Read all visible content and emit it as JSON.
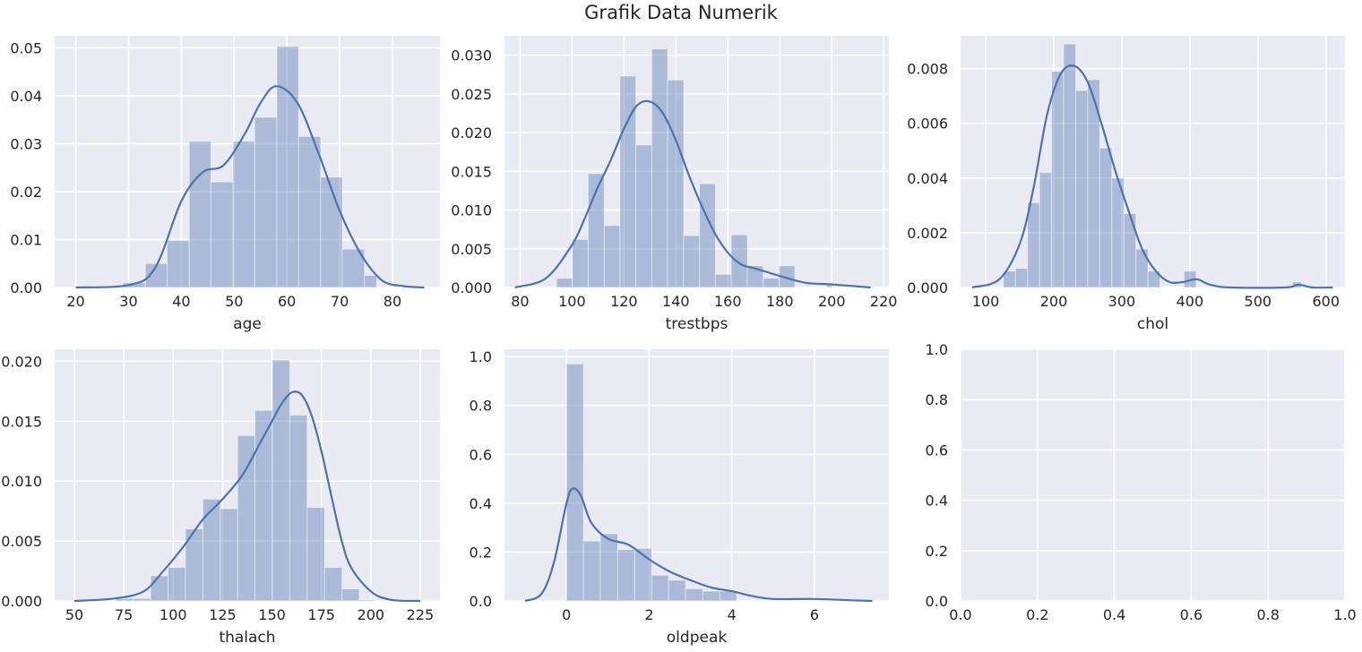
{
  "figure": {
    "title": "Grafik Data Numerik"
  },
  "colors": {
    "bar": "#4c72b0",
    "kde": "#4c72b0",
    "axes_bg": "#eaeaf2",
    "grid": "#ffffff",
    "text": "#262626"
  },
  "chart_data": [
    {
      "type": "bar",
      "xlabel": "age",
      "xlim": [
        16,
        89
      ],
      "ylim": [
        0,
        0.0525
      ],
      "xticks": [
        20,
        30,
        40,
        50,
        60,
        70,
        80
      ],
      "yticks": [
        0.0,
        0.01,
        0.02,
        0.03,
        0.04,
        0.05
      ],
      "ytick_labels": [
        "0.00",
        "0.01",
        "0.02",
        "0.03",
        "0.04",
        "0.05"
      ],
      "bin_edges": [
        29,
        33.2,
        37.3,
        41.5,
        45.6,
        49.8,
        53.9,
        58.1,
        62.2,
        66.4,
        70.5,
        74.7,
        77
      ],
      "values": [
        0.001,
        0.005,
        0.0098,
        0.0305,
        0.022,
        0.0305,
        0.0355,
        0.0503,
        0.0315,
        0.023,
        0.008,
        0.0025
      ],
      "kde": {
        "x": [
          20,
          30,
          35,
          40,
          44,
          48,
          52,
          55,
          58,
          62,
          66,
          70,
          74,
          78,
          82,
          86
        ],
        "y": [
          0.0,
          0.0005,
          0.004,
          0.018,
          0.024,
          0.0255,
          0.032,
          0.0385,
          0.042,
          0.0385,
          0.028,
          0.016,
          0.007,
          0.0015,
          0.0003,
          0.0
        ]
      }
    },
    {
      "type": "bar",
      "xlabel": "trestbps",
      "xlim": [
        74,
        222
      ],
      "ylim": [
        0,
        0.0325
      ],
      "xticks": [
        80,
        100,
        120,
        140,
        160,
        180,
        200,
        220
      ],
      "yticks": [
        0.0,
        0.005,
        0.01,
        0.015,
        0.02,
        0.025,
        0.03
      ],
      "ytick_labels": [
        "0.000",
        "0.005",
        "0.010",
        "0.015",
        "0.020",
        "0.025",
        "0.030"
      ],
      "bin_edges": [
        94,
        100.1,
        106.2,
        112.4,
        118.5,
        124.6,
        130.7,
        136.8,
        143,
        149.1,
        155.2,
        161.3,
        167.5,
        173.6,
        179.7,
        185.8,
        191.9,
        198.1,
        200
      ],
      "values": [
        0.0012,
        0.0062,
        0.0147,
        0.008,
        0.0273,
        0.0184,
        0.0308,
        0.0268,
        0.0067,
        0.0134,
        0.0017,
        0.0068,
        0.0028,
        0.0012,
        0.0028,
        0.0,
        0.0,
        0.0005
      ],
      "kde": {
        "x": [
          78,
          90,
          100,
          105,
          110,
          115,
          120,
          125,
          130,
          135,
          140,
          145,
          150,
          155,
          160,
          165,
          170,
          175,
          180,
          190,
          200,
          215
        ],
        "y": [
          0.0,
          0.0012,
          0.0055,
          0.009,
          0.013,
          0.0165,
          0.0205,
          0.0235,
          0.024,
          0.0225,
          0.019,
          0.0145,
          0.0105,
          0.007,
          0.0045,
          0.003,
          0.0025,
          0.002,
          0.0015,
          0.0006,
          0.0004,
          0.0
        ]
      }
    },
    {
      "type": "bar",
      "xlabel": "chol",
      "xlim": [
        63,
        628
      ],
      "ylim": [
        0,
        0.0092
      ],
      "xticks": [
        100,
        200,
        300,
        400,
        500,
        600
      ],
      "yticks": [
        0.0,
        0.002,
        0.004,
        0.006,
        0.008
      ],
      "ytick_labels": [
        "0.000",
        "0.002",
        "0.004",
        "0.006",
        "0.008"
      ],
      "bin_edges": [
        126,
        143.7,
        161.4,
        179.1,
        196.8,
        214.5,
        232.2,
        249.9,
        267.6,
        285.3,
        303,
        320.7,
        338.4,
        356.1,
        373.8,
        391.5,
        409.2,
        426.9,
        444.6,
        462.3,
        480,
        497.7,
        515.4,
        533.1,
        550.8,
        564
      ],
      "values": [
        0.0006,
        0.0007,
        0.0031,
        0.0042,
        0.0079,
        0.0089,
        0.0072,
        0.0076,
        0.0051,
        0.004,
        0.0027,
        0.0014,
        0.0006,
        0.0,
        0.0,
        0.0006,
        0.0,
        0.0,
        0.0,
        0.0,
        0.0,
        0.0,
        0.0,
        0.0,
        0.0002
      ],
      "kde": {
        "x": [
          80,
          120,
          150,
          170,
          190,
          210,
          230,
          250,
          270,
          290,
          310,
          330,
          350,
          370,
          390,
          410,
          430,
          460,
          540,
          560,
          580,
          610
        ],
        "y": [
          0.0,
          0.0003,
          0.0016,
          0.0036,
          0.0063,
          0.0078,
          0.0081,
          0.0075,
          0.006,
          0.0043,
          0.0028,
          0.0014,
          0.0006,
          0.0002,
          0.0002,
          0.0003,
          0.0001,
          0.0,
          0.0,
          0.0001,
          0.0,
          0.0
        ]
      }
    },
    {
      "type": "bar",
      "xlabel": "thalach",
      "xlim": [
        40,
        235
      ],
      "ylim": [
        0,
        0.021
      ],
      "xticks": [
        50,
        75,
        100,
        125,
        150,
        175,
        200,
        225
      ],
      "yticks": [
        0.0,
        0.005,
        0.01,
        0.015,
        0.02
      ],
      "ytick_labels": [
        "0.000",
        "0.005",
        "0.010",
        "0.015",
        "0.020"
      ],
      "bin_edges": [
        71,
        79.8,
        88.6,
        97.4,
        106.2,
        115,
        123.8,
        132.6,
        141.4,
        150.2,
        159,
        167.8,
        176.6,
        185.4,
        194.2,
        202
      ],
      "values": [
        0.0002,
        0.0002,
        0.0021,
        0.0028,
        0.006,
        0.0085,
        0.0077,
        0.0138,
        0.0159,
        0.0201,
        0.0155,
        0.0078,
        0.0028,
        0.001,
        0.0001
      ],
      "kde": {
        "x": [
          50,
          70,
          85,
          95,
          105,
          115,
          125,
          135,
          145,
          150,
          155,
          160,
          165,
          170,
          175,
          180,
          185,
          190,
          200,
          210,
          225
        ],
        "y": [
          0.0,
          0.0002,
          0.0008,
          0.0025,
          0.0045,
          0.0068,
          0.0085,
          0.0105,
          0.0135,
          0.015,
          0.0165,
          0.0174,
          0.0172,
          0.0155,
          0.0125,
          0.0088,
          0.0052,
          0.0028,
          0.0008,
          0.0001,
          0.0
        ]
      }
    },
    {
      "type": "bar",
      "xlabel": "oldpeak",
      "xlim": [
        -1.5,
        7.8
      ],
      "ylim": [
        0,
        1.03
      ],
      "xticks": [
        0,
        2,
        4,
        6
      ],
      "yticks": [
        0.0,
        0.2,
        0.4,
        0.6,
        0.8,
        1.0
      ],
      "ytick_labels": [
        "0.0",
        "0.2",
        "0.4",
        "0.6",
        "0.8",
        "1.0"
      ],
      "bin_edges": [
        0,
        0.41,
        0.82,
        1.24,
        1.65,
        2.06,
        2.47,
        2.88,
        3.3,
        3.71,
        4.12,
        4.53,
        4.94,
        5.35,
        5.77,
        6.18,
        6.2
      ],
      "values": [
        0.97,
        0.245,
        0.275,
        0.21,
        0.215,
        0.105,
        0.085,
        0.05,
        0.04,
        0.04,
        0.0,
        0.0,
        0.0,
        0.0,
        0.0,
        0.005
      ],
      "kde": {
        "x": [
          -1.0,
          -0.6,
          -0.3,
          0.0,
          0.15,
          0.35,
          0.6,
          1.0,
          1.5,
          2.0,
          2.5,
          3.0,
          3.5,
          4.0,
          4.5,
          5.0,
          6.0,
          7.0,
          7.4
        ],
        "y": [
          0.0,
          0.03,
          0.16,
          0.4,
          0.46,
          0.43,
          0.32,
          0.255,
          0.23,
          0.17,
          0.12,
          0.085,
          0.055,
          0.04,
          0.02,
          0.008,
          0.008,
          0.002,
          0.0
        ]
      }
    },
    {
      "type": "bar",
      "xlabel": "",
      "xlim": [
        0,
        1
      ],
      "ylim": [
        0,
        1
      ],
      "xticks": [
        0.0,
        0.2,
        0.4,
        0.6,
        0.8,
        1.0
      ],
      "xtick_labels": [
        "0.0",
        "0.2",
        "0.4",
        "0.6",
        "0.8",
        "1.0"
      ],
      "yticks": [
        0.0,
        0.2,
        0.4,
        0.6,
        0.8,
        1.0
      ],
      "ytick_labels": [
        "0.0",
        "0.2",
        "0.4",
        "0.6",
        "0.8",
        "1.0"
      ],
      "bin_edges": [],
      "values": [],
      "kde": {
        "x": [],
        "y": []
      }
    }
  ]
}
